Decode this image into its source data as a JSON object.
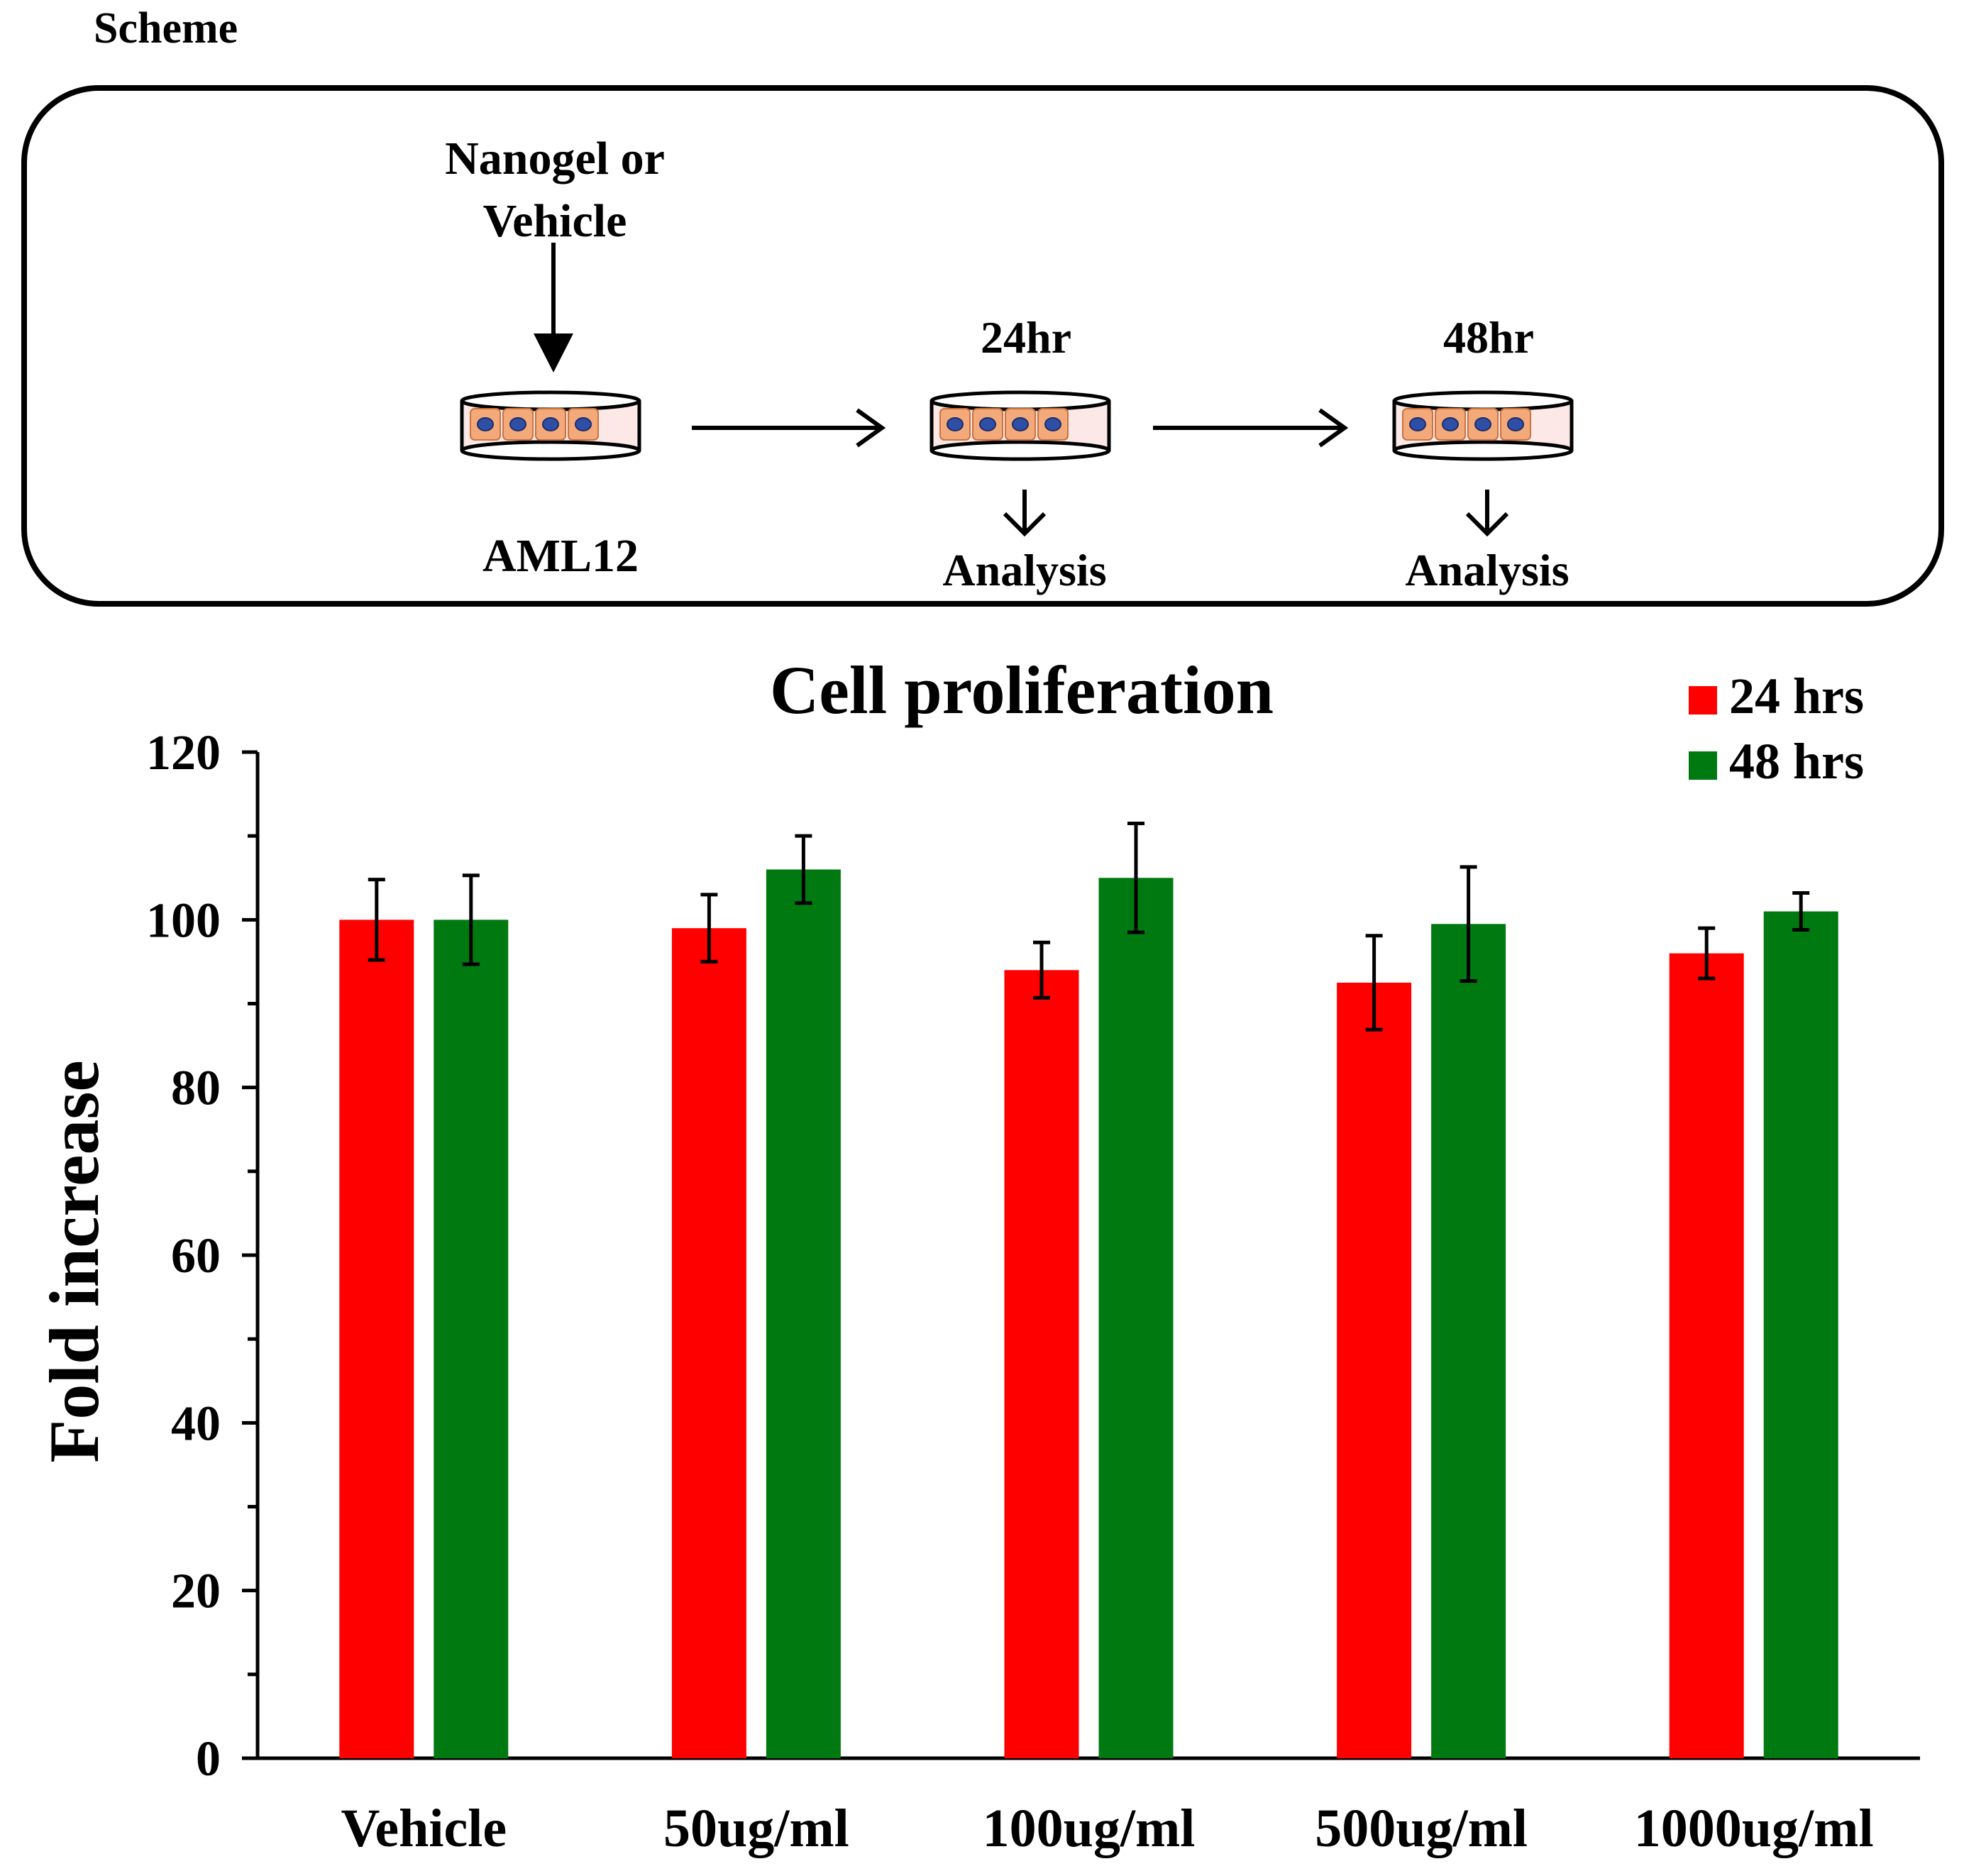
{
  "scheme": {
    "heading": "Scheme",
    "treatment_line1": "Nanogel or",
    "treatment_line2": "Vehicle",
    "cell_line": "AML12",
    "timepoint_1": "24hr",
    "timepoint_2": "48hr",
    "analysis_1": "Analysis",
    "analysis_2": "Analysis",
    "dish_color": "#f4a97a",
    "nucleus_color": "#2f4fa6"
  },
  "chart_data": {
    "type": "bar",
    "title": "Cell proliferation",
    "xlabel": "",
    "ylabel": "Fold increase",
    "ylim": [
      0,
      120
    ],
    "yticks": [
      0,
      20,
      40,
      60,
      80,
      100,
      120
    ],
    "categories": [
      "Vehicle",
      "50ug/ml",
      "100ug/ml",
      "500ug/ml",
      "1000ug/ml"
    ],
    "series": [
      {
        "name": "24 hrs",
        "color": "#ff0000",
        "values": [
          100,
          99,
          94,
          92.5,
          96
        ],
        "errors": [
          4.8,
          4,
          3.3,
          5.6,
          3
        ]
      },
      {
        "name": "48 hrs",
        "color": "#007a10",
        "values": [
          100,
          106,
          105,
          99.5,
          101
        ],
        "errors": [
          5.3,
          4,
          6.5,
          6.8,
          2.2
        ]
      }
    ],
    "legend_position": "top-right",
    "grid": false
  }
}
